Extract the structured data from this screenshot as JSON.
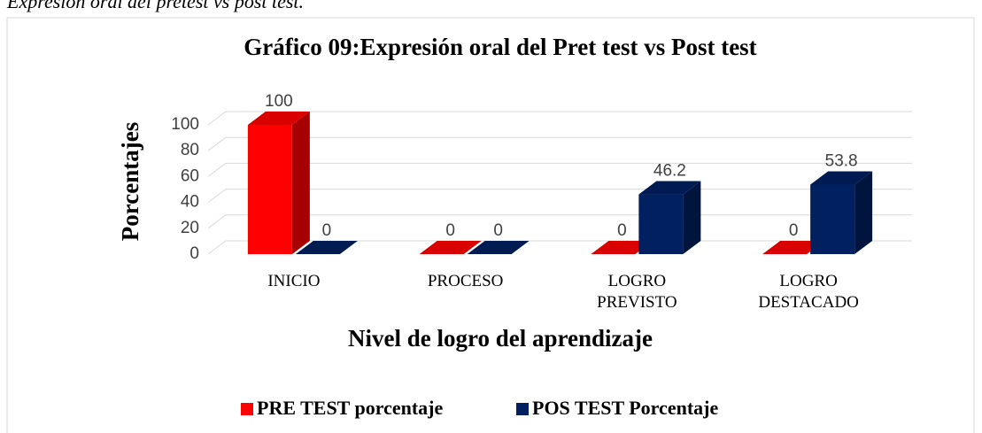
{
  "caption": "Expresión oral del pretest vs post test.",
  "chart_data": {
    "type": "bar3d",
    "title": "Gráfico 09:Expresión oral del Pret test vs Post test",
    "categories": [
      "INICIO",
      "PROCESO",
      "LOGRO PREVISTO",
      "LOGRO DESTACADO"
    ],
    "series": [
      {
        "name": "PRE TEST porcentaje",
        "color": "#ff0000",
        "values": [
          100,
          0,
          0,
          0
        ]
      },
      {
        "name": "POS TEST Porcentaje",
        "color": "#002060",
        "values": [
          0,
          0,
          46.2,
          53.8
        ]
      }
    ],
    "ylim": [
      0,
      100
    ],
    "yticks": [
      0,
      20,
      40,
      60,
      80,
      100
    ],
    "grid": true,
    "ylabel": "Porcentajes",
    "xlabel": "Nivel de logro del aprendizaje",
    "legend": "bottom"
  }
}
